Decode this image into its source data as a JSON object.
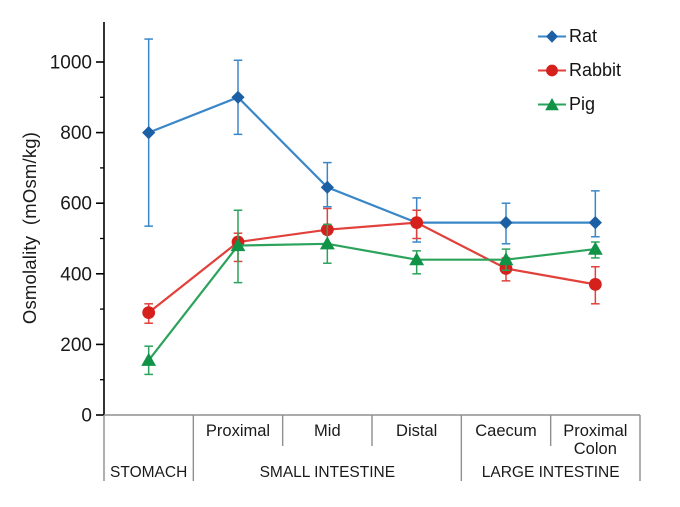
{
  "figure": {
    "background": "#ffffff",
    "text_color": "#1a1a1a",
    "axis_color": "#000000",
    "table_line_color": "#8f8f8f"
  },
  "chart_data": {
    "type": "line",
    "title": "",
    "xlabel": "",
    "ylabel": "Osmolality  (mOsm/kg)",
    "ylim": [
      0,
      1100
    ],
    "yticks": [
      0,
      200,
      400,
      600,
      800,
      1000
    ],
    "y_minor_step": 100,
    "grid": false,
    "error_bars": true,
    "categories": [
      "Stomach",
      "Proximal small intestine",
      "Mid small intestine",
      "Distal small intestine",
      "Caecum",
      "Proximal colon"
    ],
    "x_axis": {
      "cell_labels": [
        "",
        "Proximal",
        "Mid",
        "Distal",
        "Caecum",
        "Proximal\nColon"
      ],
      "group_labels": [
        {
          "label": "STOMACH",
          "span": [
            0,
            1
          ]
        },
        {
          "label": "SMALL INTESTINE",
          "span": [
            1,
            4
          ]
        },
        {
          "label": "LARGE INTESTINE",
          "span": [
            4,
            6
          ]
        }
      ]
    },
    "legend": {
      "position": "top-right",
      "items": [
        "Rat",
        "Rabbit",
        "Pig"
      ]
    },
    "series": [
      {
        "name": "Rat",
        "marker": "diamond",
        "color": "#1b5fa5",
        "line_color": "#3a87c8",
        "values": [
          800,
          900,
          645,
          545,
          545,
          545
        ],
        "upper": [
          1065,
          1005,
          715,
          615,
          600,
          635
        ],
        "lower": [
          535,
          795,
          590,
          490,
          485,
          505
        ]
      },
      {
        "name": "Rabbit",
        "marker": "circle",
        "color": "#d6201c",
        "line_color": "#e2403a",
        "values": [
          290,
          490,
          525,
          545,
          415,
          370
        ],
        "upper": [
          315,
          515,
          585,
          580,
          445,
          420
        ],
        "lower": [
          260,
          435,
          480,
          500,
          380,
          315
        ]
      },
      {
        "name": "Pig",
        "marker": "triangle",
        "color": "#109347",
        "line_color": "#2ca35c",
        "values": [
          155,
          480,
          485,
          440,
          440,
          470
        ],
        "upper": [
          195,
          580,
          540,
          465,
          470,
          490
        ],
        "lower": [
          115,
          375,
          430,
          400,
          410,
          445
        ]
      }
    ]
  }
}
